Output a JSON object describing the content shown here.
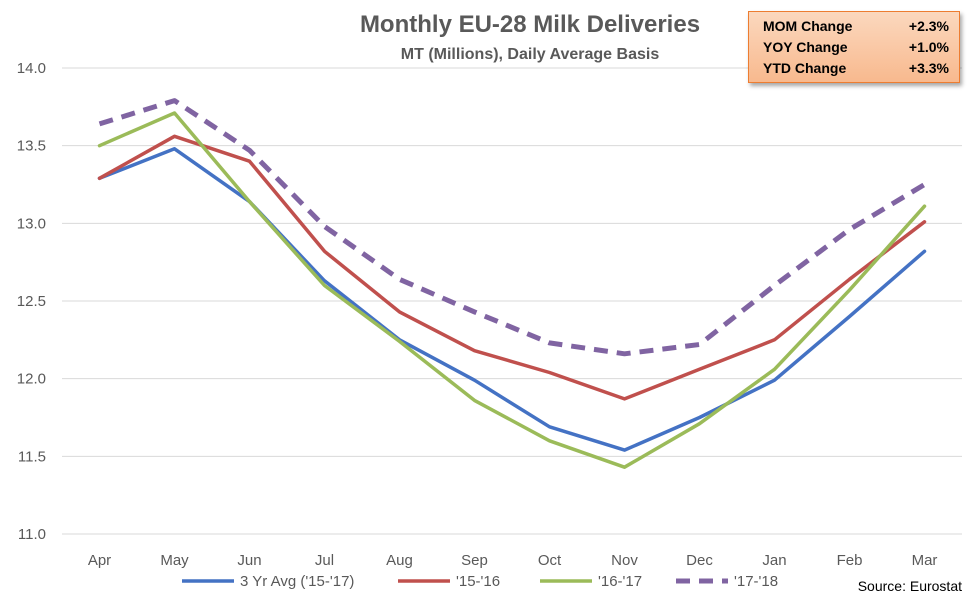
{
  "chart_data": {
    "type": "line",
    "title": "Monthly EU-28 Milk Deliveries",
    "subtitle": "MT (Millions), Daily Average Basis",
    "categories": [
      "Apr",
      "May",
      "Jun",
      "Jul",
      "Aug",
      "Sep",
      "Oct",
      "Nov",
      "Dec",
      "Jan",
      "Feb",
      "Mar"
    ],
    "ylim": [
      11.0,
      14.0
    ],
    "yticks": [
      "11.0",
      "11.5",
      "12.0",
      "12.5",
      "13.0",
      "13.5",
      "14.0"
    ],
    "grid": "horizontal",
    "legend_position": "bottom",
    "series": [
      {
        "name": "3 Yr Avg ('15-'17)",
        "color": "#4472C4",
        "dashed": false,
        "values": [
          13.29,
          13.48,
          13.14,
          12.63,
          12.25,
          11.99,
          11.69,
          11.54,
          11.75,
          11.99,
          12.4,
          12.82
        ]
      },
      {
        "name": "'15-'16",
        "color": "#C0504D",
        "dashed": false,
        "values": [
          13.29,
          13.56,
          13.4,
          12.82,
          12.43,
          12.18,
          12.04,
          11.87,
          12.06,
          12.25,
          12.64,
          13.01
        ]
      },
      {
        "name": "'16-'17",
        "color": "#9BBB59",
        "dashed": false,
        "values": [
          13.5,
          13.71,
          13.14,
          12.6,
          12.24,
          11.86,
          11.6,
          11.43,
          11.71,
          12.06,
          12.57,
          13.11
        ]
      },
      {
        "name": "'17-'18",
        "color": "#8064A2",
        "dashed": true,
        "values": [
          13.64,
          13.79,
          13.47,
          12.98,
          12.64,
          12.43,
          12.23,
          12.16,
          12.22,
          12.6,
          12.96,
          13.25
        ]
      }
    ],
    "annotations": {
      "source": "Source: Eurostat"
    }
  },
  "change_box": {
    "rows": [
      {
        "label": "MOM Change",
        "value": "+2.3%"
      },
      {
        "label": "YOY Change",
        "value": "+1.0%"
      },
      {
        "label": "YTD Change",
        "value": "+3.3%"
      }
    ],
    "fill_color": "#F8CBAD",
    "border_color": "#ED7D31"
  }
}
